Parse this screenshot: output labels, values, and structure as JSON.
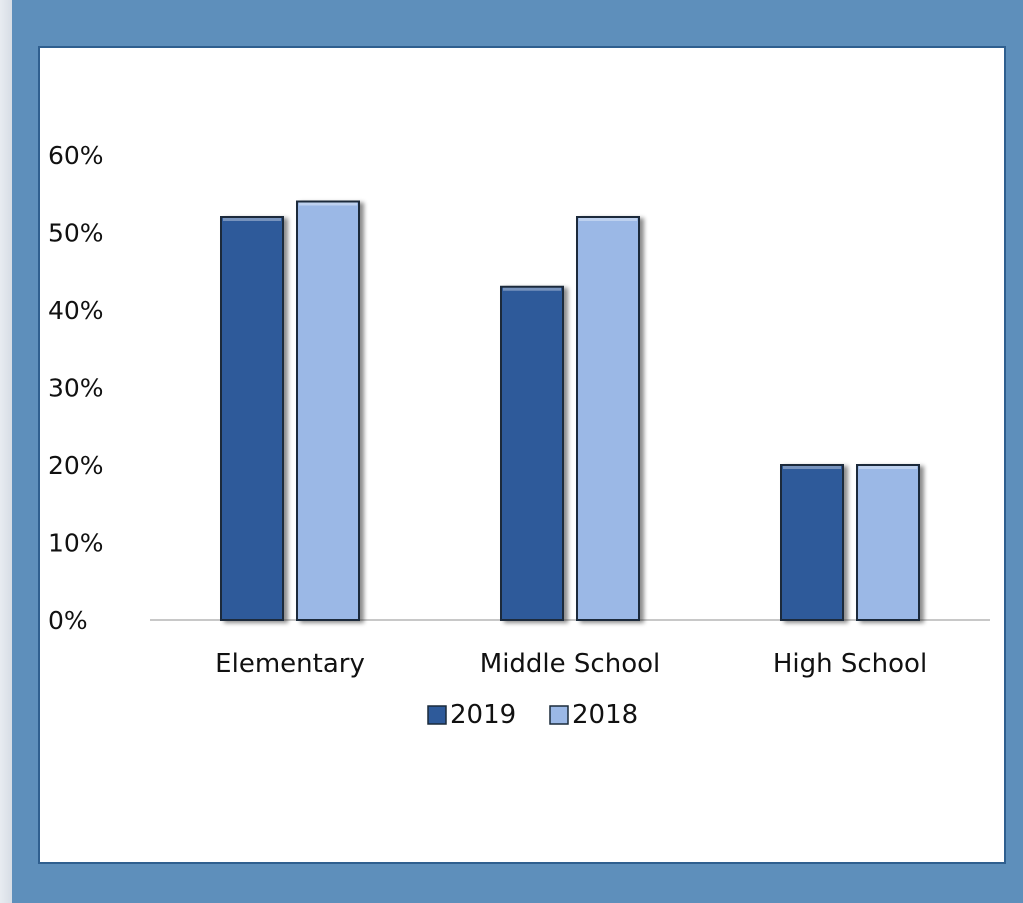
{
  "chart_data": {
    "type": "bar",
    "categories": [
      "Elementary",
      "Middle School",
      "High School"
    ],
    "series": [
      {
        "name": "2019",
        "values": [
          52,
          43,
          20
        ],
        "color": "#2e5a9a"
      },
      {
        "name": "2018",
        "values": [
          54,
          52,
          20
        ],
        "color": "#9bb8e6"
      }
    ],
    "yticks": [
      "0%",
      "10%",
      "20%",
      "30%",
      "40%",
      "50%",
      "60%"
    ],
    "ylim": [
      0,
      60
    ],
    "value_unit": "%",
    "grid": false,
    "legend_position": "bottom",
    "title": "",
    "xlabel": "",
    "ylabel": ""
  }
}
